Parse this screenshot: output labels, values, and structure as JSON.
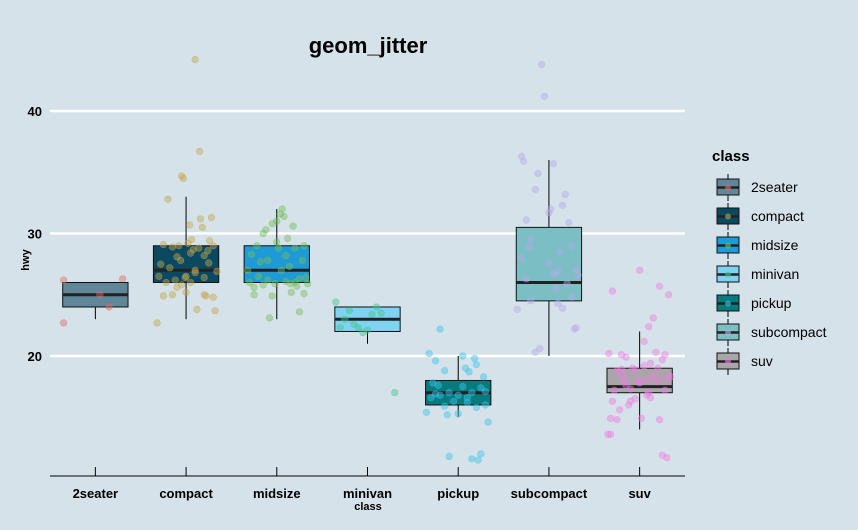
{
  "chart_data": {
    "type": "box",
    "title": "geom_jitter",
    "xlabel": "class",
    "ylabel": "hwy",
    "ylim": [
      10.2,
      45.8
    ],
    "yticks": [
      20,
      30,
      40
    ],
    "grid": "horizontal major, white",
    "legend": {
      "title": "class",
      "position": "right"
    },
    "categories": [
      "2seater",
      "compact",
      "midsize",
      "minivan",
      "pickup",
      "subcompact",
      "suv"
    ],
    "colors": {
      "2seater": "#5f8799",
      "compact": "#0b4963",
      "midsize": "#1e9ad6",
      "minivan": "#7ed3f3",
      "pickup": "#067a7c",
      "subcompact": "#7bbec3",
      "suv": "#a9a5a9"
    },
    "point_colors": {
      "2seater": "#e76b61",
      "compact": "#c4a64c",
      "midsize": "#73bf5a",
      "minivan": "#46c48c",
      "pickup": "#3fc3ea",
      "subcompact": "#b6abee",
      "suv": "#ee7fe0"
    },
    "boxes": [
      {
        "class": "2seater",
        "min": 23,
        "q1": 24,
        "median": 25,
        "q3": 26,
        "max": 26
      },
      {
        "class": "compact",
        "min": 23,
        "q1": 26,
        "median": 27,
        "q3": 29,
        "max": 33
      },
      {
        "class": "midsize",
        "min": 23,
        "q1": 26,
        "median": 27,
        "q3": 29,
        "max": 32
      },
      {
        "class": "minivan",
        "min": 21,
        "q1": 22,
        "median": 23,
        "q3": 24,
        "max": 24
      },
      {
        "class": "pickup",
        "min": 15,
        "q1": 16,
        "median": 17,
        "q3": 18,
        "max": 20
      },
      {
        "class": "subcompact",
        "min": 20,
        "q1": 24.5,
        "median": 26,
        "q3": 30.5,
        "max": 36
      },
      {
        "class": "suv",
        "min": 14,
        "q1": 17,
        "median": 17.5,
        "q3": 19,
        "max": 22
      }
    ],
    "points": {
      "2seater": [
        [
          -0.35,
          22.7
        ],
        [
          -0.35,
          26.2
        ],
        [
          0.15,
          24.0
        ],
        [
          0.3,
          26.3
        ],
        [
          0.05,
          25.0
        ]
      ],
      "compact": [
        [
          -0.2,
          32.8
        ],
        [
          -0.18,
          27.2
        ],
        [
          -0.15,
          28.9
        ],
        [
          -0.12,
          26.2
        ],
        [
          -0.1,
          25.6
        ],
        [
          -0.08,
          29.0
        ],
        [
          -0.06,
          27.8
        ],
        [
          -0.05,
          34.7
        ],
        [
          -0.03,
          34.5
        ],
        [
          -0.01,
          26.4
        ],
        [
          0.0,
          26.5
        ],
        [
          0.02,
          29.2
        ],
        [
          0.04,
          30.7
        ],
        [
          0.06,
          29.5
        ],
        [
          0.08,
          28.7
        ],
        [
          0.1,
          27.0
        ],
        [
          0.12,
          23.8
        ],
        [
          0.14,
          28.8
        ],
        [
          0.16,
          31.2
        ],
        [
          0.18,
          30.5
        ],
        [
          0.2,
          26.4
        ],
        [
          0.22,
          24.9
        ],
        [
          0.24,
          28.6
        ],
        [
          0.26,
          29.4
        ],
        [
          0.28,
          31.3
        ],
        [
          0.3,
          24.8
        ],
        [
          0.32,
          23.7
        ],
        [
          0.34,
          26.9
        ],
        [
          -0.3,
          26.5
        ],
        [
          -0.32,
          22.7
        ],
        [
          -0.28,
          27.5
        ],
        [
          -0.25,
          24.9
        ],
        [
          -0.22,
          26.0
        ],
        [
          -0.15,
          25.0
        ],
        [
          -0.05,
          25.8
        ],
        [
          0.05,
          26.0
        ],
        [
          0.1,
          44.2
        ],
        [
          0.15,
          36.7
        ],
        [
          0.2,
          25.0
        ],
        [
          0.25,
          27.6
        ],
        [
          0.3,
          29.0
        ],
        [
          -0.25,
          29.1
        ],
        [
          0.0,
          25.2
        ],
        [
          0.1,
          26.8
        ],
        [
          0.2,
          28.2
        ],
        [
          -0.1,
          28.1
        ],
        [
          0.05,
          28.4
        ]
      ],
      "midsize": [
        [
          -0.3,
          26.0
        ],
        [
          -0.28,
          28.3
        ],
        [
          -0.25,
          25.0
        ],
        [
          -0.22,
          29.0
        ],
        [
          -0.18,
          27.7
        ],
        [
          -0.15,
          30.0
        ],
        [
          -0.12,
          30.3
        ],
        [
          -0.1,
          26.2
        ],
        [
          -0.08,
          23.1
        ],
        [
          -0.05,
          30.8
        ],
        [
          -0.02,
          25.9
        ],
        [
          0.0,
          31.0
        ],
        [
          0.02,
          28.8
        ],
        [
          0.04,
          31.6
        ],
        [
          0.06,
          32.0
        ],
        [
          0.08,
          31.4
        ],
        [
          0.1,
          26.1
        ],
        [
          0.12,
          29.6
        ],
        [
          0.14,
          27.3
        ],
        [
          0.16,
          25.2
        ],
        [
          0.18,
          30.6
        ],
        [
          0.2,
          28.8
        ],
        [
          0.22,
          25.7
        ],
        [
          0.25,
          26.3
        ],
        [
          0.28,
          27.8
        ],
        [
          0.3,
          29.0
        ],
        [
          0.32,
          26.4
        ],
        [
          0.34,
          25.9
        ],
        [
          -0.32,
          27.0
        ],
        [
          -0.2,
          26.5
        ],
        [
          -0.05,
          24.9
        ],
        [
          0.05,
          27.0
        ],
        [
          0.15,
          25.9
        ],
        [
          0.25,
          23.6
        ],
        [
          -0.15,
          25.8
        ],
        [
          0.1,
          28.2
        ],
        [
          0.2,
          26.0
        ],
        [
          -0.25,
          25.6
        ],
        [
          0.3,
          25.1
        ],
        [
          0.0,
          29.3
        ],
        [
          -0.1,
          27.8
        ]
      ],
      "minivan": [
        [
          -0.35,
          24.4
        ],
        [
          -0.3,
          22.3
        ],
        [
          -0.25,
          23.0
        ],
        [
          -0.2,
          23.7
        ],
        [
          -0.15,
          22.6
        ],
        [
          -0.1,
          22.3
        ],
        [
          -0.05,
          21.9
        ],
        [
          0.0,
          22.1
        ],
        [
          0.05,
          23.4
        ],
        [
          0.1,
          24.0
        ],
        [
          0.15,
          23.5
        ],
        [
          0.3,
          17.0
        ]
      ],
      "pickup": [
        [
          -0.35,
          15.4
        ],
        [
          -0.3,
          16.6
        ],
        [
          -0.28,
          17.8
        ],
        [
          -0.25,
          19.6
        ],
        [
          -0.22,
          17.6
        ],
        [
          -0.2,
          16.8
        ],
        [
          -0.15,
          18.8
        ],
        [
          -0.12,
          15.2
        ],
        [
          -0.1,
          17.0
        ],
        [
          -0.05,
          16.3
        ],
        [
          0.0,
          16.8
        ],
        [
          0.05,
          17.5
        ],
        [
          0.08,
          19.0
        ],
        [
          0.1,
          16.2
        ],
        [
          0.12,
          18.7
        ],
        [
          0.15,
          11.6
        ],
        [
          0.18,
          19.8
        ],
        [
          0.2,
          19.3
        ],
        [
          0.22,
          11.5
        ],
        [
          0.25,
          17.4
        ],
        [
          0.28,
          18.3
        ],
        [
          0.3,
          16.0
        ],
        [
          0.33,
          14.6
        ],
        [
          -0.32,
          20.2
        ],
        [
          -0.2,
          22.2
        ],
        [
          -0.15,
          15.9
        ],
        [
          0.0,
          15.3
        ],
        [
          0.1,
          16.6
        ],
        [
          0.25,
          12.0
        ],
        [
          -0.1,
          11.8
        ],
        [
          0.05,
          20.0
        ],
        [
          0.15,
          17.0
        ],
        [
          -0.25,
          16.9
        ],
        [
          0.2,
          15.8
        ],
        [
          0.3,
          17.1
        ]
      ],
      "subcompact": [
        [
          -0.35,
          23.8
        ],
        [
          -0.3,
          36.3
        ],
        [
          -0.28,
          35.9
        ],
        [
          -0.25,
          26.3
        ],
        [
          -0.22,
          28.9
        ],
        [
          -0.2,
          29.5
        ],
        [
          -0.15,
          33.6
        ],
        [
          -0.12,
          34.9
        ],
        [
          -0.1,
          20.6
        ],
        [
          -0.05,
          41.2
        ],
        [
          0.0,
          31.7
        ],
        [
          0.02,
          32.0
        ],
        [
          0.05,
          26.7
        ],
        [
          0.08,
          25.5
        ],
        [
          0.1,
          24.3
        ],
        [
          0.12,
          28.5
        ],
        [
          0.15,
          32.3
        ],
        [
          0.18,
          33.2
        ],
        [
          0.2,
          25.9
        ],
        [
          0.22,
          30.9
        ],
        [
          0.25,
          29.0
        ],
        [
          0.28,
          22.2
        ],
        [
          0.3,
          22.3
        ],
        [
          0.32,
          26.6
        ],
        [
          -0.08,
          43.8
        ],
        [
          0.05,
          35.7
        ],
        [
          0.15,
          23.9
        ],
        [
          -0.2,
          24.5
        ],
        [
          -0.15,
          20.3
        ],
        [
          0.1,
          26.9
        ],
        [
          0.25,
          24.8
        ],
        [
          -0.3,
          28.0
        ],
        [
          0.0,
          27.6
        ],
        [
          0.3,
          27.1
        ],
        [
          -0.25,
          31.1
        ]
      ],
      "suv": [
        [
          -0.35,
          13.6
        ],
        [
          -0.32,
          14.9
        ],
        [
          -0.3,
          16.3
        ],
        [
          -0.28,
          17.2
        ],
        [
          -0.25,
          18.8
        ],
        [
          -0.22,
          15.6
        ],
        [
          -0.2,
          20.1
        ],
        [
          -0.18,
          18.4
        ],
        [
          -0.15,
          17.6
        ],
        [
          -0.12,
          16.0
        ],
        [
          -0.1,
          17.3
        ],
        [
          -0.08,
          19.0
        ],
        [
          -0.05,
          16.5
        ],
        [
          -0.02,
          18.0
        ],
        [
          0.0,
          17.8
        ],
        [
          0.02,
          14.9
        ],
        [
          0.05,
          19.2
        ],
        [
          0.08,
          16.8
        ],
        [
          0.1,
          17.0
        ],
        [
          0.12,
          19.4
        ],
        [
          0.15,
          18.4
        ],
        [
          0.18,
          20.3
        ],
        [
          0.2,
          17.9
        ],
        [
          0.22,
          25.7
        ],
        [
          0.25,
          19.7
        ],
        [
          0.28,
          20.1
        ],
        [
          0.3,
          18.2
        ],
        [
          0.32,
          25.0
        ],
        [
          0.34,
          18.3
        ],
        [
          -0.34,
          20.2
        ],
        [
          -0.3,
          25.3
        ],
        [
          -0.25,
          14.8
        ],
        [
          -0.2,
          18.9
        ],
        [
          -0.15,
          19.9
        ],
        [
          -0.1,
          16.3
        ],
        [
          0.0,
          27.0
        ],
        [
          0.05,
          21.2
        ],
        [
          0.1,
          22.4
        ],
        [
          0.15,
          23.1
        ],
        [
          0.2,
          19.0
        ],
        [
          0.25,
          11.9
        ],
        [
          0.3,
          11.7
        ],
        [
          -0.32,
          13.6
        ],
        [
          -0.05,
          18.9
        ],
        [
          0.12,
          16.6
        ],
        [
          0.22,
          14.8
        ],
        [
          0.28,
          17.2
        ],
        [
          -0.18,
          17.9
        ],
        [
          0.08,
          18.0
        ]
      ]
    }
  }
}
